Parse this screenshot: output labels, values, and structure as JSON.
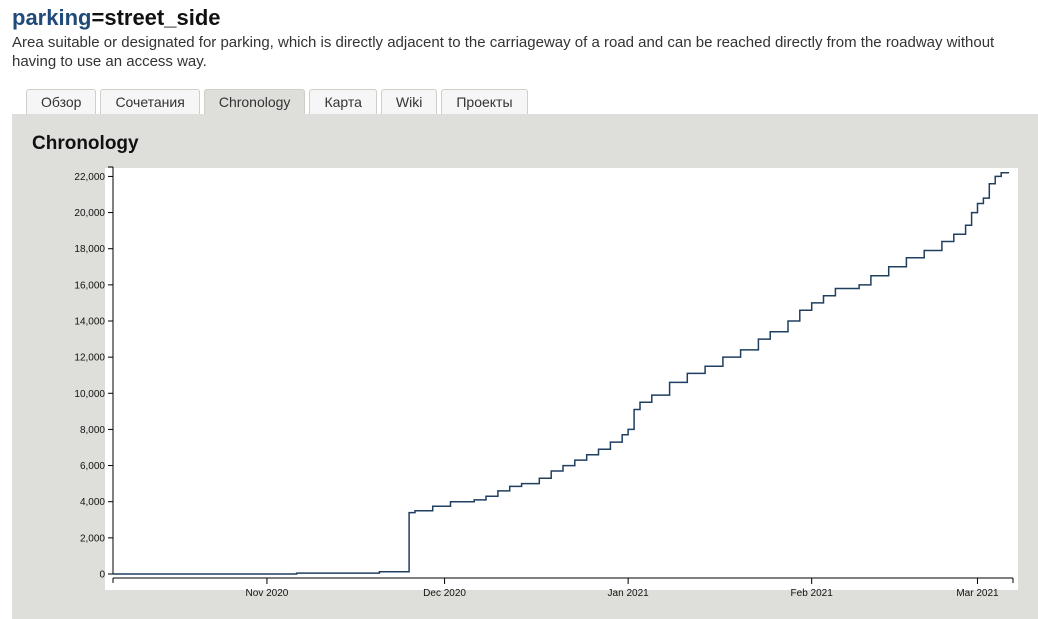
{
  "header": {
    "tag_key": "parking",
    "tag_eq": "=",
    "tag_value": "street_side",
    "description": "Area suitable or designated for parking, which is directly adjacent to the carriageway of a road and can be reached directly from the roadway without having to use an access way."
  },
  "tabs": [
    {
      "label": "Обзор",
      "active": false
    },
    {
      "label": "Сочетания",
      "active": false
    },
    {
      "label": "Chronology",
      "active": true
    },
    {
      "label": "Карта",
      "active": false
    },
    {
      "label": "Wiki",
      "active": false
    },
    {
      "label": "Проекты",
      "active": false
    }
  ],
  "panel": {
    "title": "Chronology"
  },
  "colors": {
    "line": "#1f3f60",
    "panel_bg": "#dededa"
  },
  "chart_data": {
    "type": "line",
    "title": "",
    "xlabel": "",
    "ylabel": "",
    "x_axis_type": "date",
    "ylim": [
      0,
      22300
    ],
    "xlim": [
      "2020-10-06",
      "2021-03-07"
    ],
    "grid": false,
    "y_ticks": [
      {
        "value": 0,
        "label": "0"
      },
      {
        "value": 2000,
        "label": "2,000"
      },
      {
        "value": 4000,
        "label": "4,000"
      },
      {
        "value": 6000,
        "label": "6,000"
      },
      {
        "value": 8000,
        "label": "8,000"
      },
      {
        "value": 10000,
        "label": "10,000"
      },
      {
        "value": 12000,
        "label": "12,000"
      },
      {
        "value": 14000,
        "label": "14,000"
      },
      {
        "value": 16000,
        "label": "16,000"
      },
      {
        "value": 18000,
        "label": "18,000"
      },
      {
        "value": 20000,
        "label": "20,000"
      },
      {
        "value": 22000,
        "label": "22,000"
      }
    ],
    "x_ticks": [
      {
        "date": "2020-11-01",
        "label": "Nov 2020"
      },
      {
        "date": "2020-12-01",
        "label": "Dec 2020"
      },
      {
        "date": "2021-01-01",
        "label": "Jan 2021"
      },
      {
        "date": "2021-02-01",
        "label": "Feb 2021"
      },
      {
        "date": "2021-03-01",
        "label": "Mar 2021"
      }
    ],
    "series": [
      {
        "step": true,
        "x": [
          "2020-10-06",
          "2020-11-06",
          "2020-11-20",
          "2020-11-25",
          "2020-11-26",
          "2020-11-29",
          "2020-12-02",
          "2020-12-06",
          "2020-12-08",
          "2020-12-10",
          "2020-12-12",
          "2020-12-14",
          "2020-12-17",
          "2020-12-19",
          "2020-12-21",
          "2020-12-23",
          "2020-12-25",
          "2020-12-27",
          "2020-12-29",
          "2020-12-31",
          "2021-01-01",
          "2021-01-02",
          "2021-01-03",
          "2021-01-05",
          "2021-01-08",
          "2021-01-11",
          "2021-01-14",
          "2021-01-17",
          "2021-01-20",
          "2021-01-23",
          "2021-01-25",
          "2021-01-28",
          "2021-01-30",
          "2021-02-01",
          "2021-02-03",
          "2021-02-05",
          "2021-02-09",
          "2021-02-11",
          "2021-02-14",
          "2021-02-17",
          "2021-02-20",
          "2021-02-23",
          "2021-02-25",
          "2021-02-27",
          "2021-02-28",
          "2021-03-01",
          "2021-03-02",
          "2021-03-03",
          "2021-03-04",
          "2021-03-05"
        ],
        "y": [
          0,
          50,
          120,
          3400,
          3500,
          3750,
          4000,
          4100,
          4300,
          4600,
          4850,
          5000,
          5300,
          5700,
          6000,
          6300,
          6600,
          6900,
          7300,
          7700,
          8000,
          9100,
          9500,
          9900,
          10600,
          11100,
          11500,
          12000,
          12400,
          13000,
          13400,
          14000,
          14600,
          15000,
          15400,
          15800,
          16000,
          16500,
          17000,
          17500,
          17900,
          18400,
          18800,
          19300,
          20000,
          20500,
          20800,
          21600,
          22000,
          22200
        ]
      }
    ]
  }
}
